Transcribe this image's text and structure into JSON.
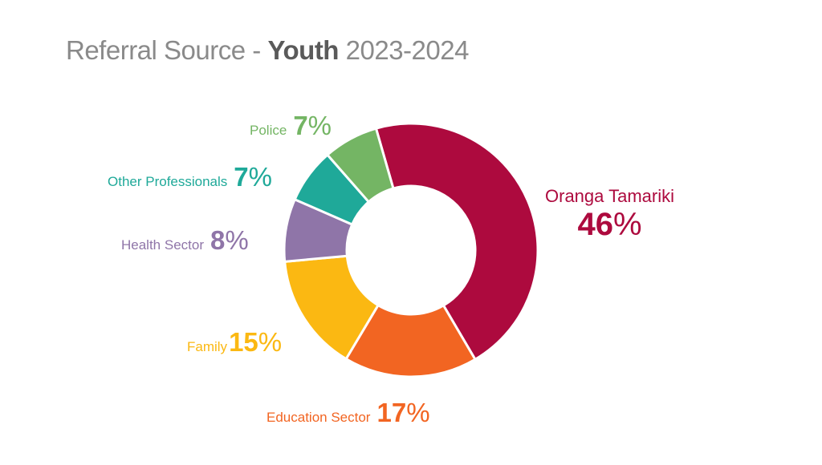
{
  "title": {
    "prefix": "Referral Source - ",
    "bold": "Youth",
    "suffix": " 2023-2024"
  },
  "chart_data": {
    "type": "pie",
    "donut": true,
    "title": "Referral Source - Youth 2023-2024",
    "segments": [
      {
        "name": "Oranga Tamariki",
        "value": 46,
        "label": "46",
        "color": "#ad0a3e"
      },
      {
        "name": "Education Sector",
        "value": 17,
        "label": "17",
        "color": "#f26522"
      },
      {
        "name": "Family",
        "value": 15,
        "label": "15",
        "color": "#fbb812"
      },
      {
        "name": "Health Sector",
        "value": 8,
        "label": "8",
        "color": "#8f75a8"
      },
      {
        "name": "Other Professionals",
        "value": 7,
        "label": "7",
        "color": "#1fa999"
      },
      {
        "name": "Police",
        "value": 7,
        "label": "7",
        "color": "#74b564"
      }
    ],
    "percent_sign": "%"
  }
}
